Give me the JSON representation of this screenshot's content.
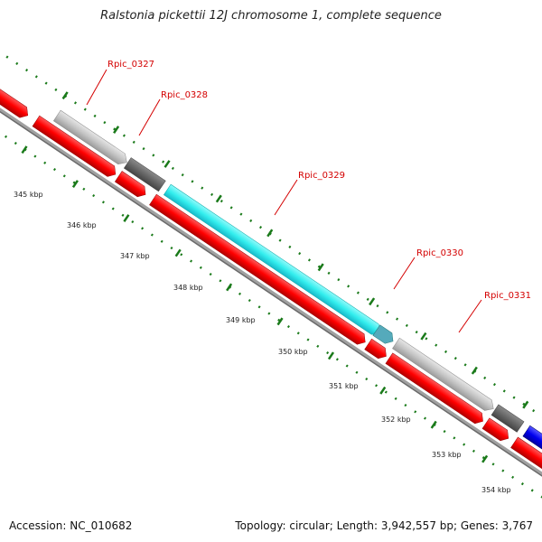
{
  "title": "Ralstonia pickettii 12J chromosome 1, complete sequence",
  "footer": {
    "accession": "Accession: NC_010682",
    "summary": "Topology: circular; Length: 3,942,557 bp; Genes: 3,767"
  },
  "scale_labels": [
    "345 kbp",
    "346 kbp",
    "347 kbp",
    "348 kbp",
    "349 kbp",
    "350 kbp",
    "351 kbp",
    "352 kbp",
    "353 kbp",
    "354 kbp"
  ],
  "gene_labels": [
    "Rpic_0327",
    "Rpic_0328",
    "Rpic_0329",
    "Rpic_0330",
    "Rpic_0331"
  ],
  "colors": {
    "cds": "#ff0000",
    "gray_feature": "#c8c8c8",
    "dark_feature": "#666666",
    "cyan_feature": "#33eeee",
    "blue_feature": "#0000ee",
    "backbone": "#999999",
    "ticks": "#1a7a1a",
    "label": "#d40000"
  }
}
